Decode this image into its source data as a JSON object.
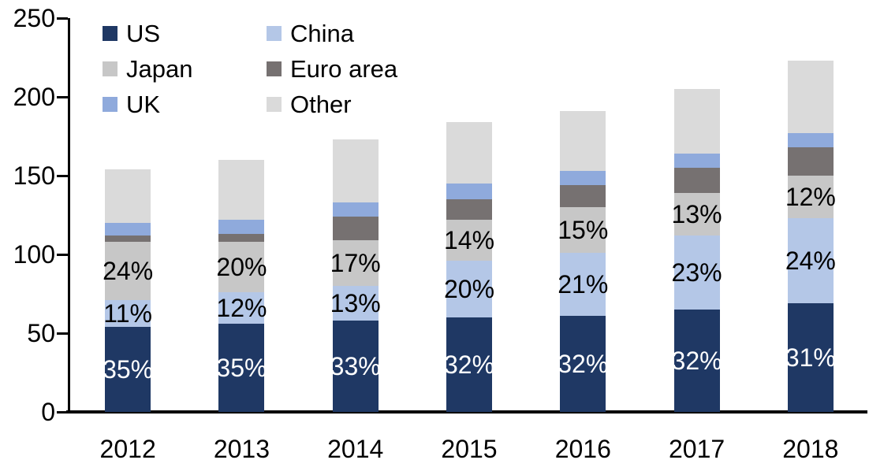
{
  "chart_data": {
    "type": "bar",
    "stacked": true,
    "title": "",
    "xlabel": "",
    "ylabel": "",
    "categories": [
      "2012",
      "2013",
      "2014",
      "2015",
      "2016",
      "2017",
      "2018"
    ],
    "series": [
      {
        "name": "US",
        "color": "#1F3864",
        "values": [
          54,
          56,
          58,
          60,
          61,
          65,
          69
        ],
        "pct_labels": [
          "35%",
          "35%",
          "33%",
          "32%",
          "32%",
          "32%",
          "31%"
        ],
        "label_color": "#FFFFFF"
      },
      {
        "name": "China",
        "color": "#B4C7E7",
        "values": [
          17,
          20,
          22,
          36,
          40,
          47,
          54
        ],
        "pct_labels": [
          "11%",
          "12%",
          "13%",
          "20%",
          "21%",
          "23%",
          "24%"
        ],
        "label_color": "#000000"
      },
      {
        "name": "Japan",
        "color": "#C7C7C7",
        "values": [
          37,
          32,
          29,
          26,
          29,
          27,
          27
        ],
        "pct_labels": [
          "24%",
          "20%",
          "17%",
          "14%",
          "15%",
          "13%",
          "12%"
        ],
        "label_color": "#000000"
      },
      {
        "name": "Euro area",
        "color": "#767171",
        "values": [
          4,
          5,
          15,
          13,
          14,
          16,
          18
        ],
        "pct_labels": null,
        "label_color": null
      },
      {
        "name": "UK",
        "color": "#8FAADC",
        "values": [
          8,
          9,
          9,
          10,
          9,
          9,
          9
        ],
        "pct_labels": null,
        "label_color": null
      },
      {
        "name": "Other",
        "color": "#DADADA",
        "values": [
          34,
          38,
          40,
          39,
          38,
          41,
          46
        ],
        "pct_labels": null,
        "label_color": null
      }
    ],
    "totals": [
      154,
      160,
      173,
      184,
      191,
      205,
      223
    ],
    "ylim": [
      0,
      250
    ],
    "yticks": [
      0,
      50,
      100,
      150,
      200,
      250
    ],
    "grid": false,
    "legend_position": "top-left",
    "legend_columns": 2,
    "axis_color": "#000000",
    "background": "#FFFFFF"
  }
}
